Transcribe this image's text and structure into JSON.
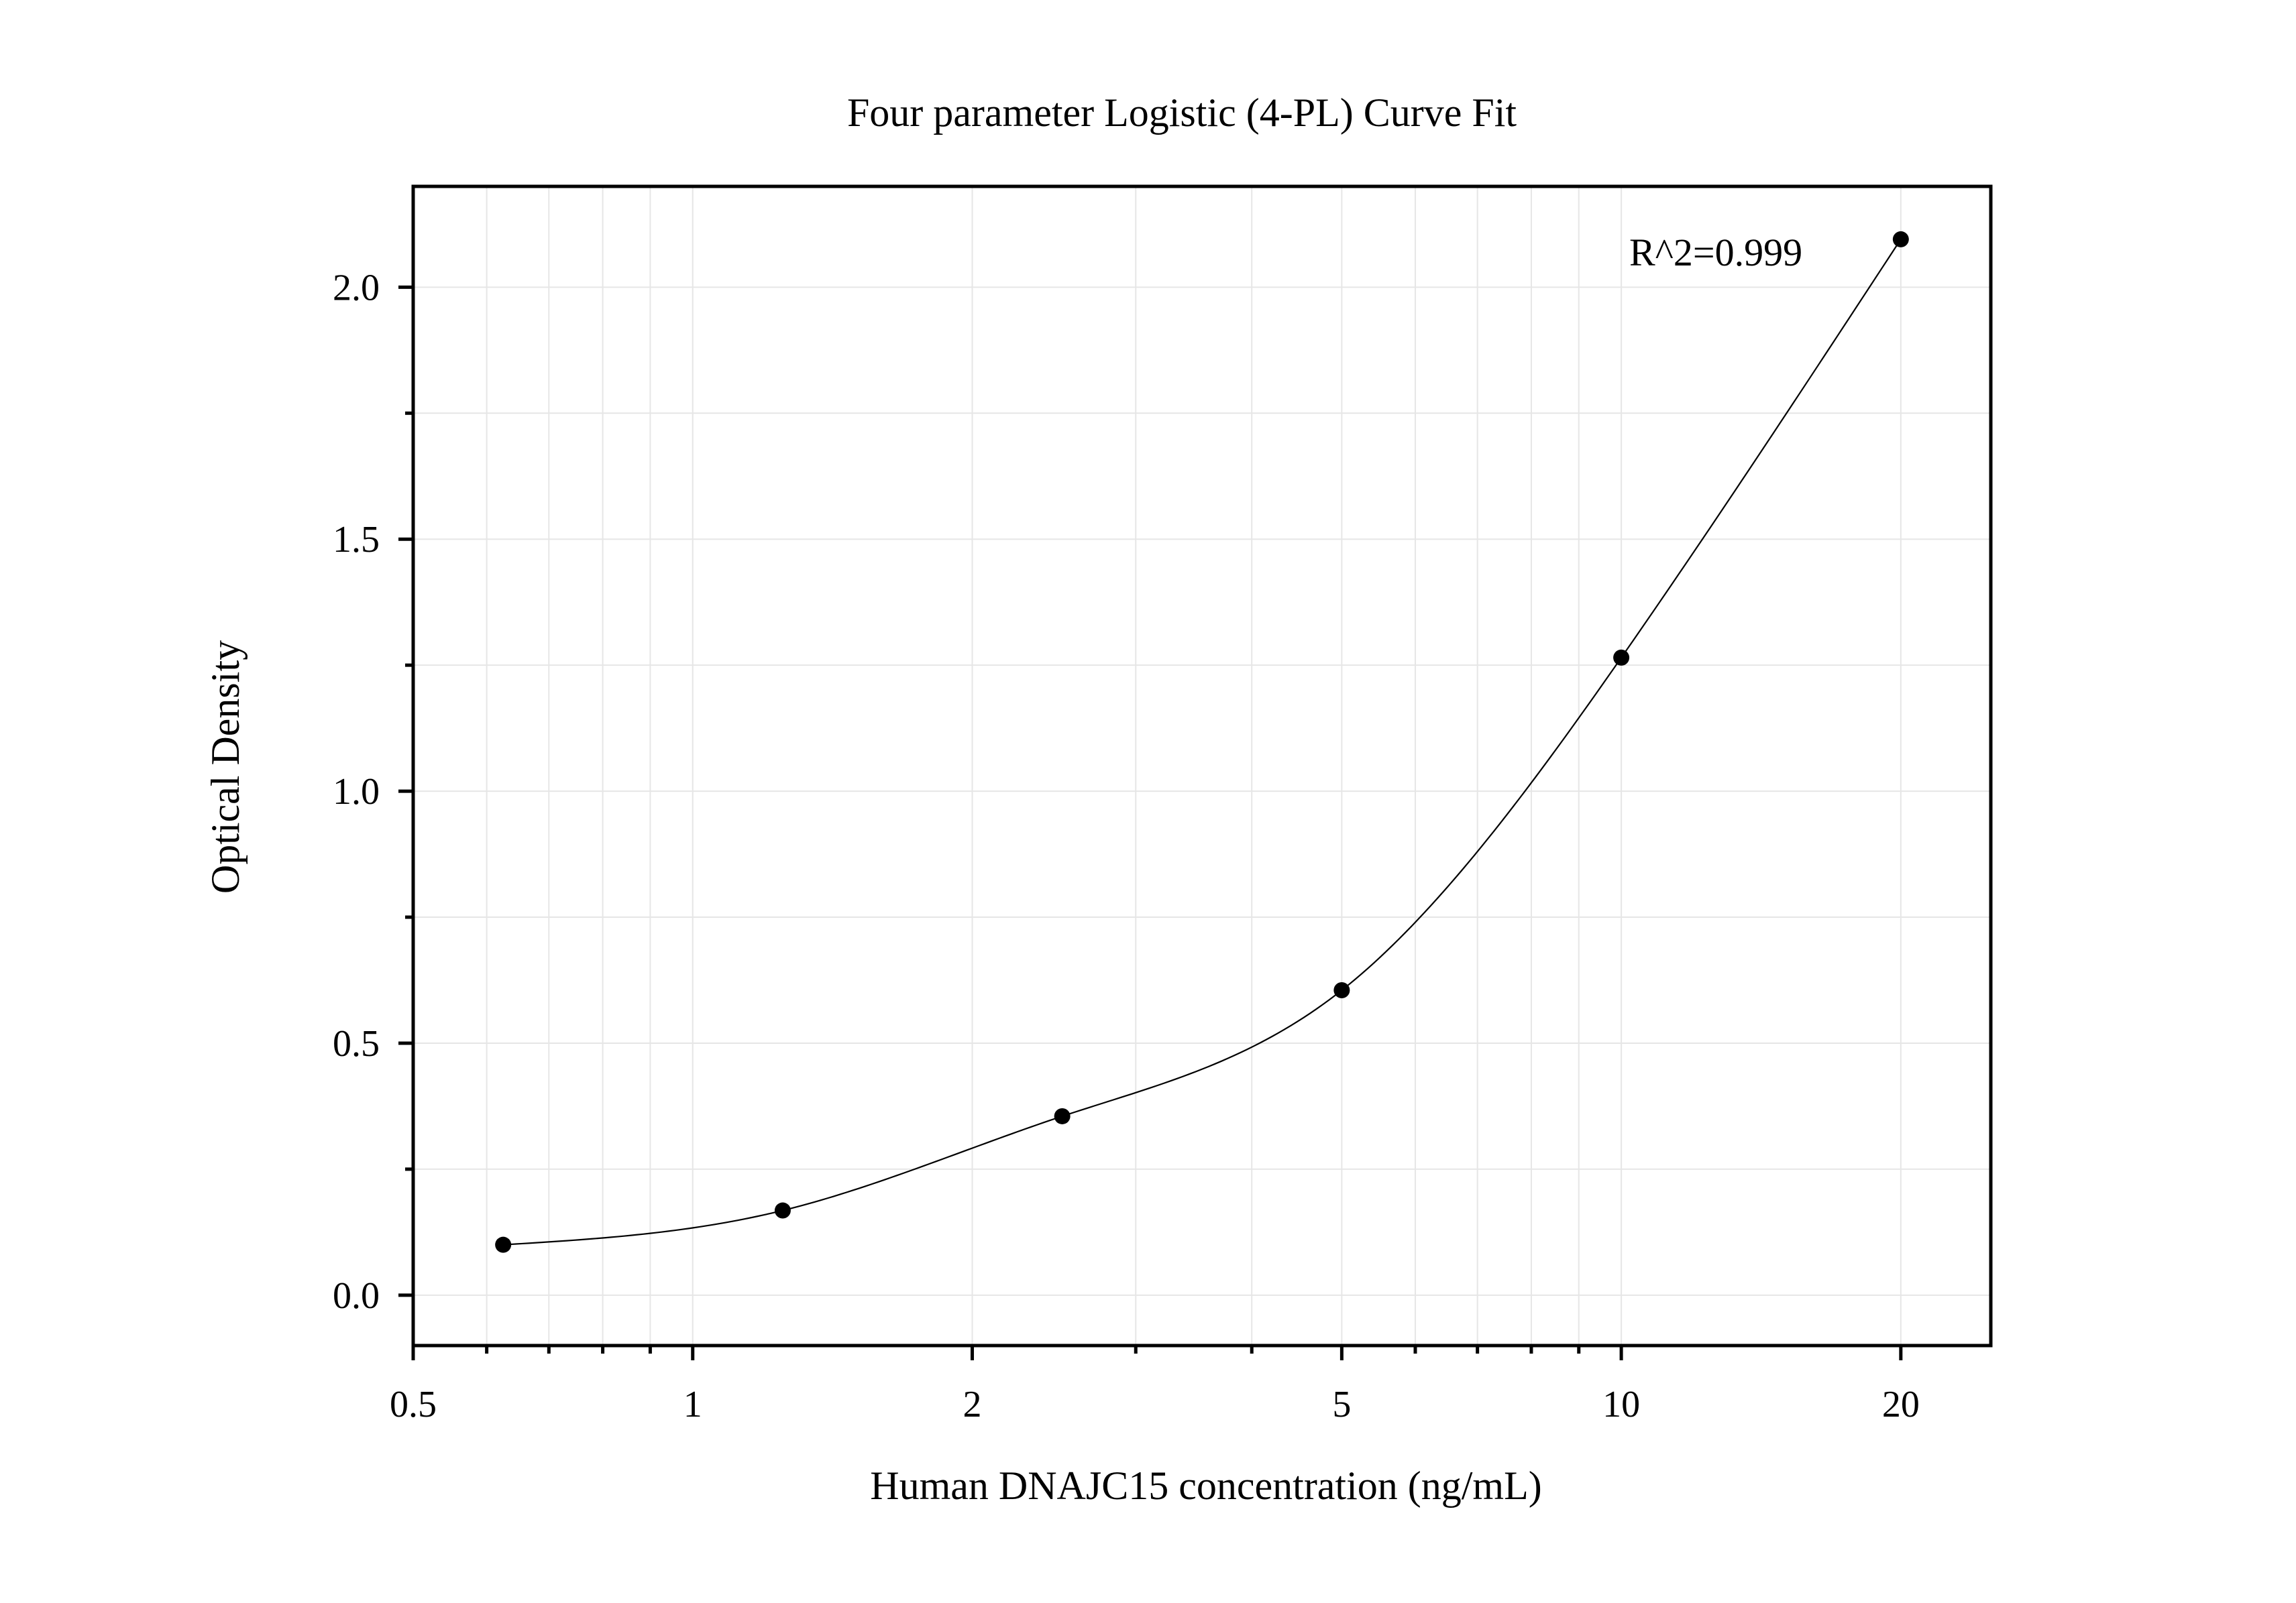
{
  "chart_data": {
    "type": "scatter",
    "title": "Four parameter Logistic (4-PL) Curve Fit",
    "xlabel": "Human DNAJC15 concentration (ng/mL)",
    "ylabel": "Optical Density",
    "x_scale": "log",
    "xlim": [
      0.5,
      25
    ],
    "ylim": [
      -0.1,
      2.2
    ],
    "x_ticks": [
      0.5,
      1,
      2,
      5,
      10,
      20
    ],
    "x_tick_labels": [
      "0.5",
      "1",
      "2",
      "5",
      "10",
      "20"
    ],
    "y_ticks": [
      0.0,
      0.5,
      1.0,
      1.5,
      2.0
    ],
    "y_tick_labels": [
      "0.0",
      "0.5",
      "1.0",
      "1.5",
      "2.0"
    ],
    "grid": true,
    "annotation": "R^2=0.999",
    "series": [
      {
        "points": [
          {
            "x": 0.625,
            "y": 0.1
          },
          {
            "x": 1.25,
            "y": 0.168
          },
          {
            "x": 2.5,
            "y": 0.355
          },
          {
            "x": 5,
            "y": 0.605
          },
          {
            "x": 10,
            "y": 1.265
          },
          {
            "x": 20,
            "y": 2.095
          }
        ]
      }
    ],
    "fit": {
      "model": "4-PL",
      "x_range": [
        0.625,
        20
      ]
    }
  }
}
